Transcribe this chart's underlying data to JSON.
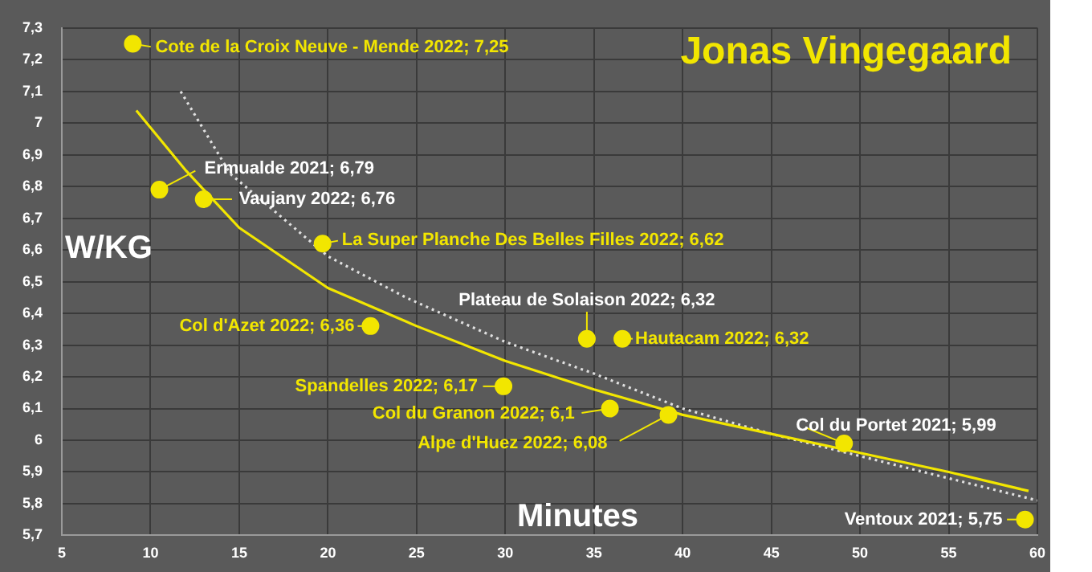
{
  "chart_data": {
    "type": "scatter",
    "title": "Jonas Vingegaard",
    "xlabel": "Minutes",
    "ylabel": "W/KG",
    "xlim": [
      5,
      60
    ],
    "xticks": [
      5,
      10,
      15,
      20,
      25,
      30,
      35,
      40,
      45,
      50,
      55,
      60
    ],
    "ylim": [
      5.7,
      7.3
    ],
    "yticks": [
      {
        "value": 5.7,
        "label": "5,7"
      },
      {
        "value": 5.8,
        "label": "5,8"
      },
      {
        "value": 5.9,
        "label": "5,9"
      },
      {
        "value": 6,
        "label": "6"
      },
      {
        "value": 6.1,
        "label": "6,1"
      },
      {
        "value": 6.2,
        "label": "6,2"
      },
      {
        "value": 6.3,
        "label": "6,3"
      },
      {
        "value": 6.4,
        "label": "6,4"
      },
      {
        "value": 6.5,
        "label": "6,5"
      },
      {
        "value": 6.6,
        "label": "6,6"
      },
      {
        "value": 6.7,
        "label": "6,7"
      },
      {
        "value": 6.8,
        "label": "6,8"
      },
      {
        "value": 6.9,
        "label": "6,9"
      },
      {
        "value": 7,
        "label": "7"
      },
      {
        "value": 7.1,
        "label": "7,1"
      },
      {
        "value": 7.2,
        "label": "7,2"
      },
      {
        "value": 7.3,
        "label": "7,3"
      }
    ],
    "grid": true,
    "legend": false,
    "marker": "circle",
    "series": [
      {
        "color": "#f2e600",
        "x": [
          9,
          10.5,
          13,
          19.7,
          22.4,
          29.9,
          34.6,
          36.6,
          35.9,
          39.2,
          49.1,
          59.3
        ],
        "values": [
          7.25,
          6.79,
          6.76,
          6.62,
          6.36,
          6.17,
          6.32,
          6.32,
          6.1,
          6.08,
          5.99,
          5.75
        ],
        "value_labels": [
          "Cote de la Croix Neuve - Mende 2022; 7,25",
          "Ermualde 2021; 6,79",
          "Vaujany 2022; 6,76",
          "La Super Planche Des Belles Filles 2022; 6,62",
          "Col d'Azet 2022; 6,36",
          "Spandelles 2022; 6,17",
          "Plateau de Solaison 2022; 6,32",
          "Hautacam 2022; 6,32",
          "Col du Granon 2022; 6,1",
          "Alpe d'Huez 2022; 6,08",
          "Col du Portet 2021; 5,99",
          "Ventoux 2021; 5,75"
        ]
      },
      {
        "type": "line",
        "color": "#f2e600",
        "line_style": "solid",
        "marker": "none",
        "x": [
          9.2,
          12,
          15,
          20,
          25,
          30,
          35,
          40,
          45,
          50,
          55,
          59.5
        ],
        "values": [
          7.04,
          6.85,
          6.67,
          6.48,
          6.36,
          6.25,
          6.16,
          6.08,
          6.02,
          5.96,
          5.9,
          5.84
        ]
      },
      {
        "type": "line",
        "color": "#e0e0e0",
        "line_style": "dotted",
        "marker": "none",
        "x": [
          11.7,
          14.5,
          20,
          24.4,
          30,
          35,
          40,
          45,
          50,
          55,
          60
        ],
        "values": [
          7.1,
          6.84,
          6.58,
          6.45,
          6.31,
          6.21,
          6.1,
          6.02,
          5.95,
          5.88,
          5.81
        ]
      }
    ]
  }
}
